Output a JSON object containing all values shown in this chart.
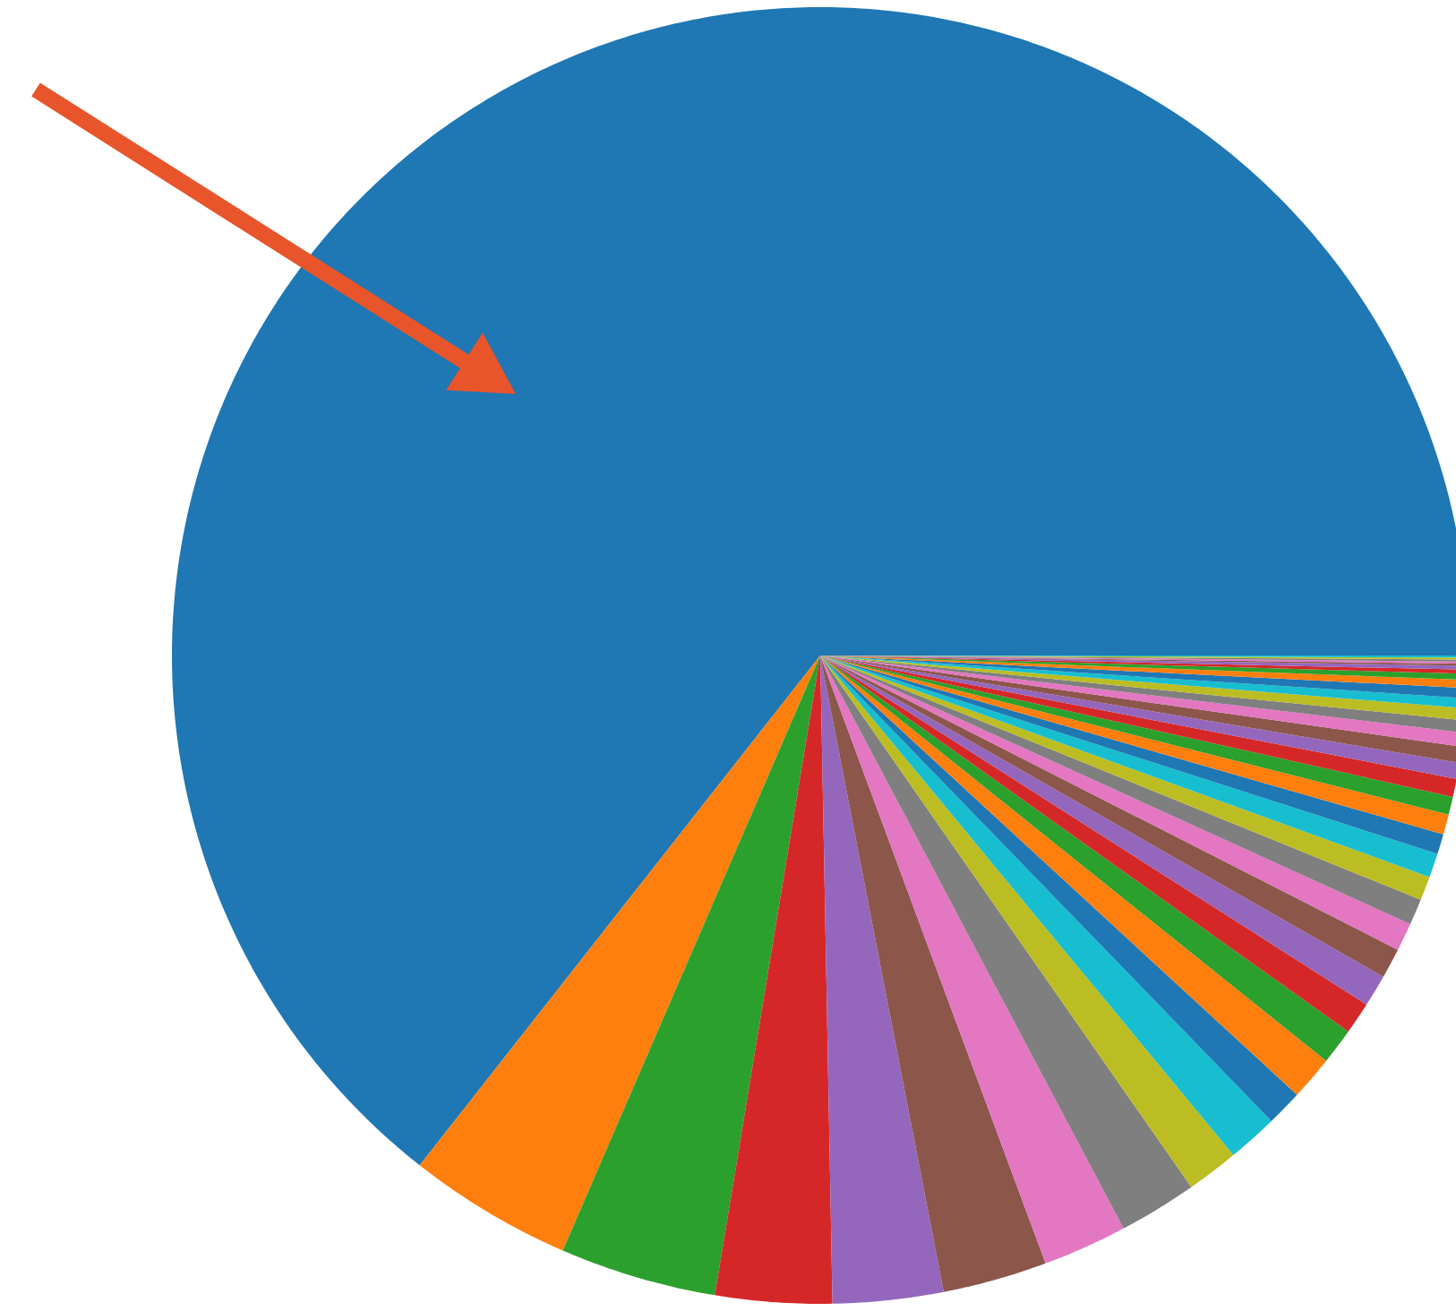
{
  "chart_data": {
    "type": "pie",
    "categories": [
      null,
      null,
      null,
      null,
      null,
      null,
      null,
      null,
      null,
      null,
      null,
      null,
      null,
      null,
      null,
      null,
      null,
      null,
      null,
      null,
      null,
      null,
      null,
      null,
      null,
      null,
      null,
      null,
      null,
      null,
      null,
      null,
      null,
      null,
      null,
      null,
      null,
      null,
      null,
      null
    ],
    "values": [
      64.4,
      4.1,
      3.9,
      2.9,
      2.75,
      2.6,
      2.1,
      1.95,
      1.3,
      1.25,
      0.9,
      1.1,
      0.9,
      0.8,
      0.8,
      0.75,
      0.7,
      0.65,
      0.6,
      0.6,
      0.5,
      0.5,
      0.45,
      0.45,
      0.4,
      0.4,
      0.35,
      0.3,
      0.3,
      0.25,
      0.25,
      0.2,
      0.15,
      0.1,
      0.1,
      0.05,
      0.05,
      0.05,
      0.05,
      0.05
    ],
    "colors": [
      "#1f77b4",
      "#ff7f0e",
      "#2ca02c",
      "#d62728",
      "#9467bd",
      "#8c564b",
      "#e377c2",
      "#7f7f7f",
      "#bcbd22",
      "#17becf",
      "#1f77b4",
      "#ff7f0e",
      "#2ca02c",
      "#d62728",
      "#9467bd",
      "#8c564b",
      "#e377c2",
      "#7f7f7f",
      "#bcbd22",
      "#17becf",
      "#1f77b4",
      "#ff7f0e",
      "#2ca02c",
      "#d62728",
      "#9467bd",
      "#8c564b",
      "#e377c2",
      "#7f7f7f",
      "#bcbd22",
      "#17becf",
      "#1f77b4",
      "#ff7f0e",
      "#2ca02c",
      "#d62728",
      "#9467bd",
      "#8c564b",
      "#e377c2",
      "#7f7f7f",
      "#bcbd22",
      "#17becf"
    ]
  }
}
